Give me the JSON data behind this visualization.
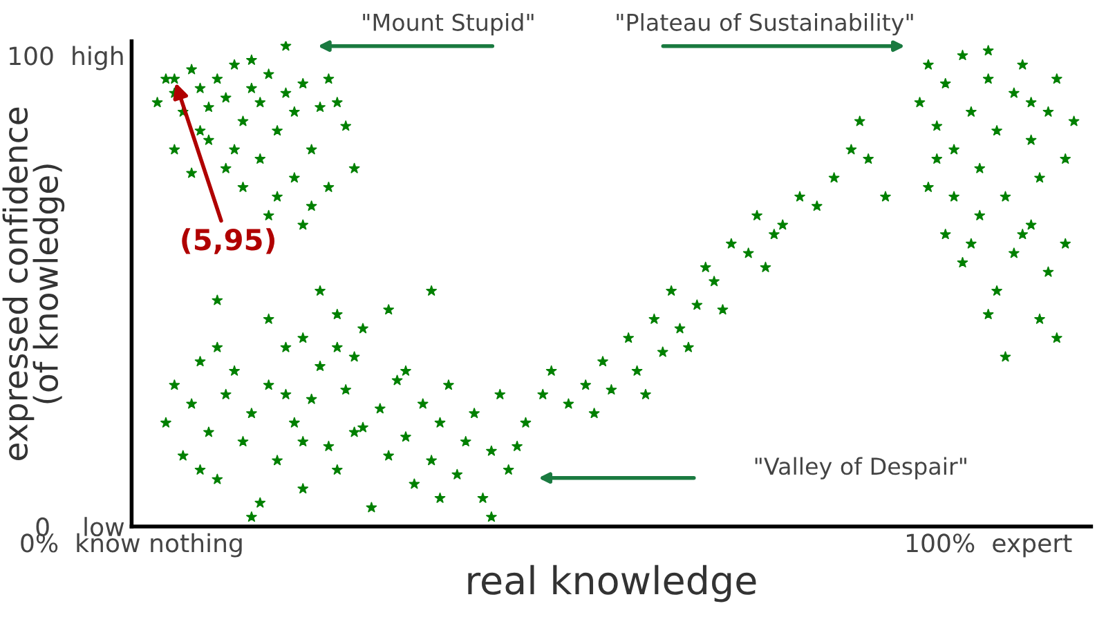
{
  "chart_data": {
    "type": "scatter",
    "xlabel": "real knowledge",
    "ylabel": "expressed confidence\n(of knowledge)",
    "xlim": [
      0,
      112
    ],
    "ylim": [
      0,
      103
    ],
    "xticks": [
      {
        "value": 0,
        "label": "0%  know nothing"
      },
      {
        "value": 100,
        "label": "100%  expert"
      }
    ],
    "yticks": [
      {
        "value": 0,
        "label": "0    low"
      },
      {
        "value": 100,
        "label": "100  high"
      }
    ],
    "grid": false,
    "legend": false,
    "marker": "star",
    "annotations": [
      {
        "text": "(5,95)",
        "x": 5,
        "y": 95
      },
      "\"Mount Stupid\"",
      "\"Plateau of Sustainability\"",
      "\"Valley of Despair\""
    ],
    "series": [
      {
        "color": "#008000",
        "x": [
          5,
          3,
          4,
          5,
          6,
          7,
          8,
          9,
          10,
          11,
          12,
          13,
          14,
          15,
          16,
          17,
          18,
          19,
          20,
          21,
          22,
          23,
          5,
          7,
          9,
          11,
          13,
          15,
          17,
          19,
          21,
          23,
          25,
          26,
          14,
          18,
          8,
          12,
          20,
          16,
          24,
          10,
          16,
          20,
          24,
          27,
          35,
          30,
          22,
          4,
          5,
          6,
          7,
          8,
          9,
          10,
          11,
          12,
          13,
          14,
          15,
          16,
          17,
          18,
          19,
          20,
          21,
          22,
          23,
          24,
          25,
          26,
          27,
          28,
          29,
          30,
          31,
          32,
          33,
          34,
          35,
          36,
          37,
          38,
          39,
          40,
          41,
          42,
          43,
          44,
          10,
          20,
          14,
          26,
          32,
          8,
          18,
          24,
          36,
          42,
          45,
          46,
          48,
          49,
          51,
          53,
          54,
          55,
          56,
          58,
          59,
          60,
          61,
          62,
          63,
          64,
          65,
          66,
          67,
          68,
          69,
          70,
          72,
          73,
          74,
          76,
          78,
          80,
          82,
          84,
          86,
          88,
          85,
          75,
          92,
          93,
          94,
          95,
          96,
          97,
          98,
          99,
          100,
          101,
          102,
          103,
          104,
          105,
          106,
          107,
          108,
          109,
          110,
          93,
          95,
          97,
          99,
          101,
          103,
          105,
          107,
          109,
          96,
          100,
          104,
          106,
          108,
          102,
          94,
          98,
          100,
          105
        ],
        "values": [
          95,
          90,
          95,
          92,
          88,
          97,
          93,
          89,
          95,
          91,
          98,
          86,
          93,
          90,
          96,
          84,
          92,
          88,
          94,
          80,
          89,
          95,
          80,
          75,
          82,
          76,
          72,
          78,
          70,
          74,
          68,
          72,
          85,
          76,
          99,
          102,
          84,
          80,
          64,
          66,
          90,
          48,
          44,
          40,
          45,
          42,
          50,
          46,
          50,
          22,
          30,
          15,
          26,
          35,
          20,
          10,
          28,
          33,
          18,
          24,
          5,
          30,
          14,
          38,
          22,
          8,
          27,
          34,
          17,
          12,
          29,
          36,
          21,
          4,
          25,
          15,
          31,
          19,
          9,
          26,
          14,
          22,
          30,
          11,
          18,
          24,
          6,
          16,
          28,
          12,
          38,
          18,
          2,
          20,
          33,
          12,
          28,
          38,
          6,
          2,
          17,
          22,
          28,
          33,
          26,
          30,
          24,
          35,
          29,
          40,
          33,
          28,
          44,
          37,
          50,
          42,
          38,
          47,
          55,
          52,
          46,
          60,
          58,
          66,
          55,
          64,
          70,
          68,
          74,
          80,
          78,
          70,
          86,
          62,
          90,
          98,
          85,
          94,
          80,
          100,
          88,
          76,
          95,
          84,
          70,
          92,
          98,
          82,
          74,
          88,
          95,
          78,
          86,
          72,
          62,
          56,
          66,
          50,
          58,
          64,
          54,
          60,
          70,
          101,
          62,
          44,
          40,
          36,
          78,
          60,
          45,
          90
        ]
      }
    ]
  }
}
